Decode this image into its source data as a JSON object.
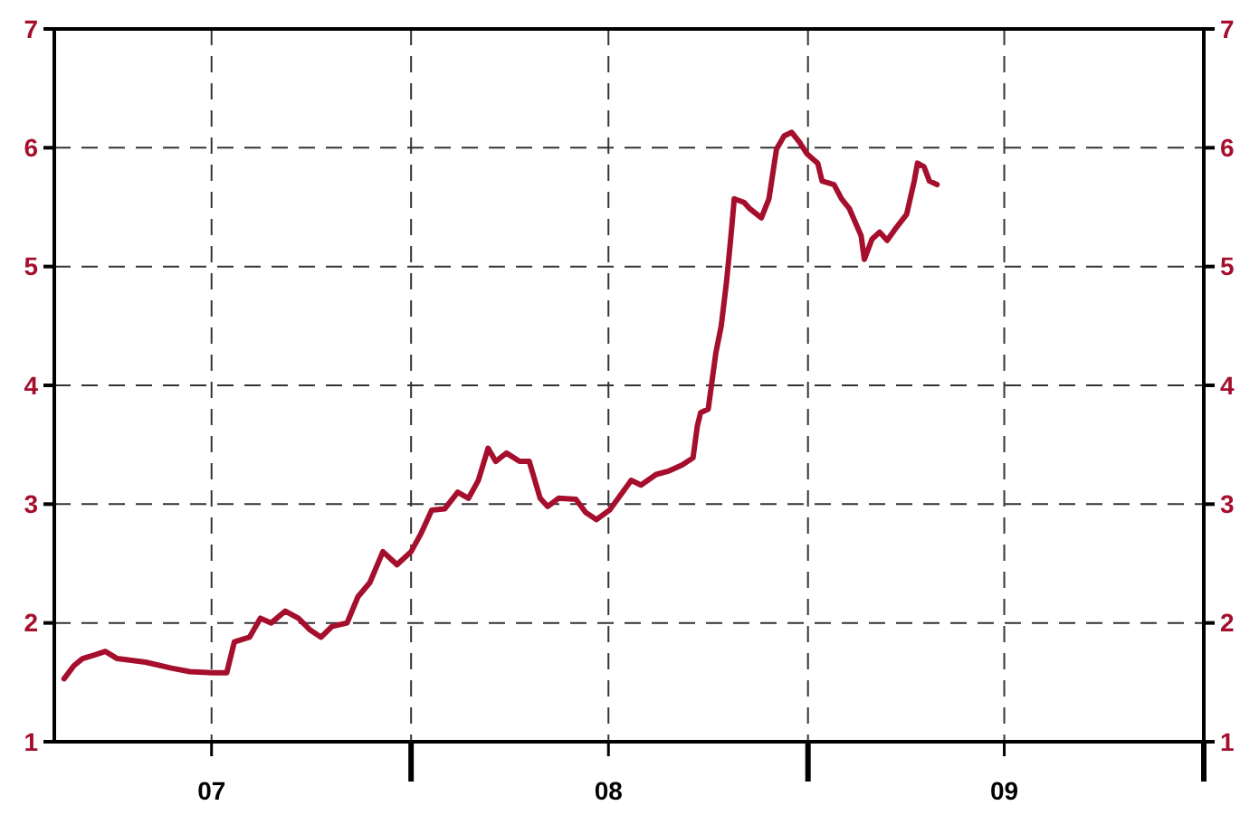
{
  "chart_data": {
    "type": "line",
    "grid": true,
    "line_style": "solid",
    "marker": "none",
    "xlim": [
      "2007-02-06",
      "2010-01-01"
    ],
    "xticks": [
      {
        "value": "2007-07-01",
        "label": "07"
      },
      {
        "value": "2008-01-01",
        "label": null
      },
      {
        "value": "2008-07-01",
        "label": "08"
      },
      {
        "value": "2009-01-01",
        "label": null
      },
      {
        "value": "2009-07-01",
        "label": "09"
      },
      {
        "value": "2010-01-01",
        "label": null
      }
    ],
    "ylim": [
      1,
      7
    ],
    "yticks": [
      1,
      2,
      3,
      4,
      5,
      6,
      7
    ],
    "y2lim": [
      1,
      7
    ],
    "y2ticks": [
      1,
      2,
      3,
      4,
      5,
      6,
      7
    ],
    "series": [
      {
        "color": "#a50f2d",
        "x": [
          "2007-02-15",
          "2007-02-24",
          "2007-03-04",
          "2007-03-15",
          "2007-03-25",
          "2007-04-05",
          "2007-05-01",
          "2007-05-25",
          "2007-06-11",
          "2007-07-02",
          "2007-07-15",
          "2007-07-22",
          "2007-08-05",
          "2007-08-15",
          "2007-08-25",
          "2007-09-07",
          "2007-09-19",
          "2007-09-30",
          "2007-10-10",
          "2007-10-20",
          "2007-11-03",
          "2007-11-13",
          "2007-11-24",
          "2007-12-06",
          "2007-12-19",
          "2008-01-01",
          "2008-01-10",
          "2008-01-20",
          "2008-02-01",
          "2008-02-13",
          "2008-02-23",
          "2008-03-03",
          "2008-03-12",
          "2008-03-19",
          "2008-03-29",
          "2008-04-10",
          "2008-04-19",
          "2008-04-29",
          "2008-05-06",
          "2008-05-16",
          "2008-06-01",
          "2008-06-10",
          "2008-06-20",
          "2008-07-02",
          "2008-07-14",
          "2008-07-22",
          "2008-07-31",
          "2008-08-14",
          "2008-08-26",
          "2008-09-07",
          "2008-09-17",
          "2008-09-21",
          "2008-09-24",
          "2008-10-01",
          "2008-10-08",
          "2008-10-13",
          "2008-10-18",
          "2008-10-22",
          "2008-10-25",
          "2008-11-03",
          "2008-11-08",
          "2008-11-19",
          "2008-11-26",
          "2008-12-03",
          "2008-12-10",
          "2008-12-17",
          "2008-12-24",
          "2008-12-31",
          "2009-01-10",
          "2009-01-14",
          "2009-01-25",
          "2009-02-01",
          "2009-02-08",
          "2009-02-19",
          "2009-02-22",
          "2009-03-01",
          "2009-03-08",
          "2009-03-15",
          "2009-03-22",
          "2009-04-02",
          "2009-04-09",
          "2009-04-12",
          "2009-04-18",
          "2009-04-23",
          "2009-04-30"
        ],
        "values": [
          1.53,
          1.64,
          1.7,
          1.73,
          1.76,
          1.7,
          1.67,
          1.62,
          1.59,
          1.58,
          1.58,
          1.84,
          1.88,
          2.04,
          2.0,
          2.1,
          2.04,
          1.94,
          1.88,
          1.97,
          2.0,
          2.22,
          2.34,
          2.6,
          2.49,
          2.6,
          2.75,
          2.95,
          2.96,
          3.1,
          3.05,
          3.2,
          3.47,
          3.36,
          3.43,
          3.36,
          3.36,
          3.05,
          2.98,
          3.05,
          3.04,
          2.93,
          2.87,
          2.95,
          3.1,
          3.2,
          3.16,
          3.25,
          3.28,
          3.33,
          3.39,
          3.66,
          3.77,
          3.8,
          4.27,
          4.5,
          4.88,
          5.26,
          5.57,
          5.54,
          5.49,
          5.41,
          5.57,
          5.99,
          6.1,
          6.13,
          6.05,
          5.95,
          5.87,
          5.72,
          5.69,
          5.57,
          5.49,
          5.26,
          5.06,
          5.23,
          5.29,
          5.22,
          5.31,
          5.44,
          5.72,
          5.87,
          5.84,
          5.72,
          5.69
        ]
      }
    ]
  }
}
